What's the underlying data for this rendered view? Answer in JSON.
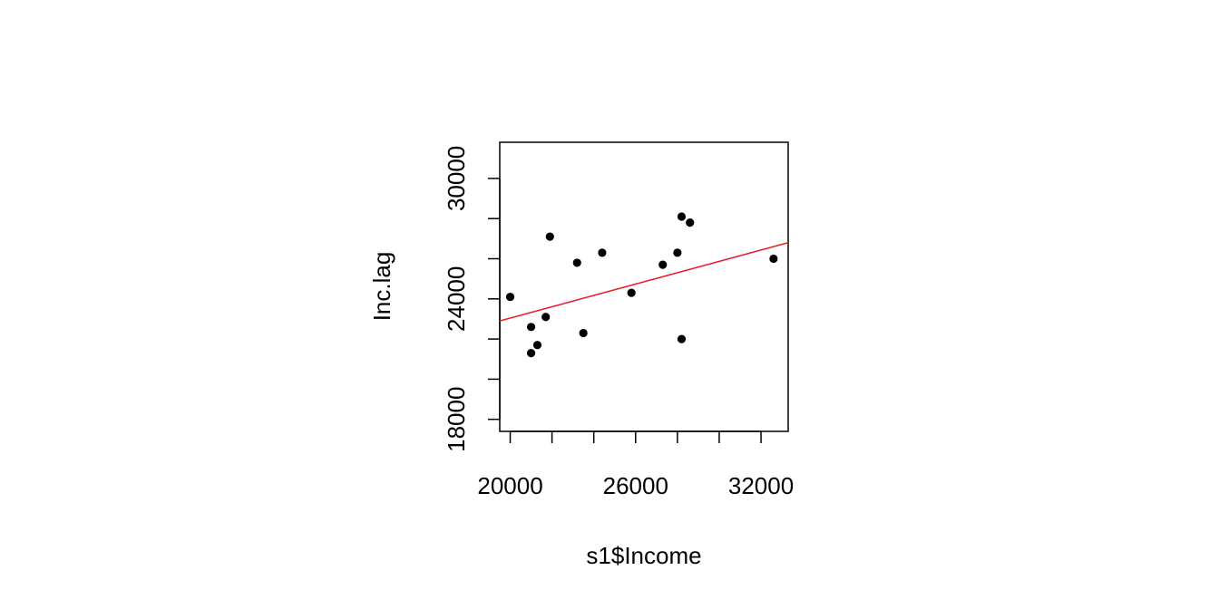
{
  "chart_data": {
    "type": "scatter",
    "title": "",
    "xlabel": "s1$Income",
    "ylabel": "Inc.lag",
    "xlim": [
      19500,
      33300
    ],
    "ylim": [
      17400,
      31800
    ],
    "xticks": [
      20000,
      22000,
      24000,
      26000,
      28000,
      30000,
      32000
    ],
    "xtick_labels": [
      "20000",
      "",
      "",
      "26000",
      "",
      "",
      "32000"
    ],
    "yticks": [
      18000,
      20000,
      22000,
      24000,
      26000,
      28000,
      30000
    ],
    "ytick_labels": [
      "18000",
      "",
      "",
      "24000",
      "",
      "",
      "30000"
    ],
    "grid": false,
    "points": {
      "x": [
        20000,
        21000,
        21000,
        21300,
        21700,
        21900,
        23200,
        23500,
        24400,
        25800,
        27300,
        28000,
        28200,
        28200,
        28600,
        32600
      ],
      "y": [
        24100,
        21300,
        22600,
        21700,
        23100,
        27100,
        25800,
        22300,
        26300,
        24300,
        25700,
        26300,
        28100,
        22000,
        27800,
        26000
      ]
    },
    "fit_line": {
      "x": [
        19500,
        33300
      ],
      "y": [
        22900,
        26800
      ]
    },
    "colors": {
      "points": "#000000",
      "fit_line": "#e8202a",
      "axes": "#000000"
    }
  }
}
